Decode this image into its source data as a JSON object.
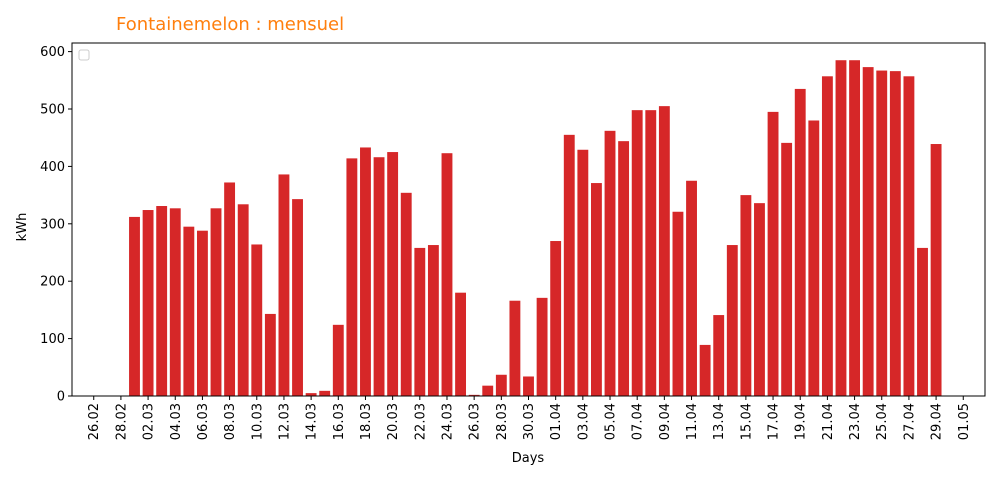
{
  "chart_data": {
    "type": "bar",
    "title": "Fontainemelon : mensuel",
    "title_color": "#ff7f0e",
    "xlabel": "Days",
    "ylabel": "kWh",
    "bar_color": "#d62728",
    "ylim": [
      0,
      615
    ],
    "yticks": [
      0,
      100,
      200,
      300,
      400,
      500,
      600
    ],
    "xtick_labels": [
      "26.02",
      "28.02",
      "02.03",
      "04.03",
      "06.03",
      "08.03",
      "10.03",
      "12.03",
      "14.03",
      "16.03",
      "18.03",
      "20.03",
      "22.03",
      "24.03",
      "26.03",
      "28.03",
      "30.03",
      "01.04",
      "03.04",
      "05.04",
      "07.04",
      "09.04",
      "11.04",
      "13.04",
      "15.04",
      "17.04",
      "19.04",
      "21.04",
      "23.04",
      "25.04",
      "27.04",
      "29.04",
      "01.05"
    ],
    "legend": "top-left (empty)",
    "grid": false,
    "categories": [
      "26.02",
      "27.02",
      "28.02",
      "01.03",
      "02.03",
      "03.03",
      "04.03",
      "05.03",
      "06.03",
      "07.03",
      "08.03",
      "09.03",
      "10.03",
      "11.03",
      "12.03",
      "13.03",
      "14.03",
      "15.03",
      "16.03",
      "17.03",
      "18.03",
      "19.03",
      "20.03",
      "21.03",
      "22.03",
      "23.03",
      "24.03",
      "25.03",
      "26.03",
      "27.03",
      "28.03",
      "29.03",
      "30.03",
      "31.03",
      "01.04",
      "02.04",
      "03.04",
      "04.04",
      "05.04",
      "06.04",
      "07.04",
      "08.04",
      "09.04",
      "10.04",
      "11.04",
      "12.04",
      "13.04",
      "14.04",
      "15.04",
      "16.04",
      "17.04",
      "18.04",
      "19.04",
      "20.04",
      "21.04",
      "22.04",
      "23.04",
      "24.04",
      "25.04",
      "26.04",
      "27.04",
      "28.04",
      "29.04",
      "30.04",
      "01.05"
    ],
    "values": [
      0,
      0,
      0,
      312,
      324,
      331,
      327,
      295,
      288,
      327,
      372,
      334,
      264,
      143,
      386,
      343,
      5,
      9,
      124,
      414,
      433,
      416,
      425,
      354,
      258,
      263,
      423,
      180,
      2,
      18,
      37,
      166,
      34,
      171,
      270,
      455,
      429,
      371,
      462,
      444,
      498,
      498,
      505,
      321,
      375,
      89,
      141,
      263,
      350,
      336,
      495,
      441,
      535,
      480,
      557,
      585,
      585,
      573,
      567,
      566,
      557,
      258,
      439,
      0,
      0
    ]
  }
}
